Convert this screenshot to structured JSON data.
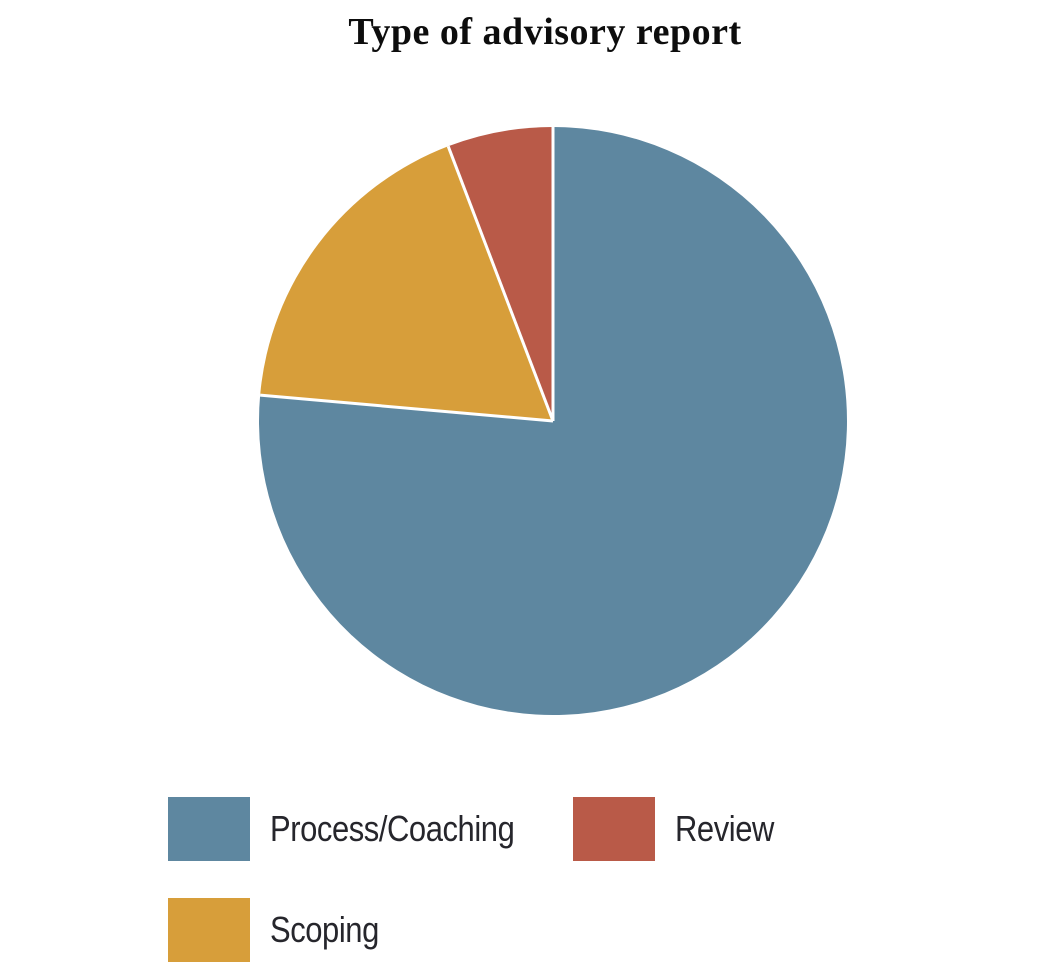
{
  "title": "Type of advisory report",
  "chart_data": {
    "type": "pie",
    "title": "Type of advisory report",
    "categories": [
      "Process/Coaching",
      "Scoping",
      "Review"
    ],
    "values": [
      76.4,
      17.8,
      5.8
    ],
    "values_unit": "percent (estimated from slice angles)",
    "colors": [
      "#5e87a0",
      "#d79e3a",
      "#b95a48"
    ],
    "start_angle_deg": 0,
    "direction": "clockwise",
    "slice_separator_color": "#ffffff",
    "slice_separator_width": 3,
    "grid": "off",
    "legend_position": "bottom-left",
    "legend_display_order": [
      "Process/Coaching",
      "Review",
      "Scoping"
    ]
  },
  "legend": {
    "items": [
      {
        "label": "Process/Coaching",
        "color": "#5e87a0"
      },
      {
        "label": "Review",
        "color": "#b95a48"
      },
      {
        "label": "Scoping",
        "color": "#d79e3a"
      }
    ]
  },
  "colors": {
    "background": "#ffffff",
    "title_text": "#0d0d0d",
    "legend_text": "#26262c"
  }
}
